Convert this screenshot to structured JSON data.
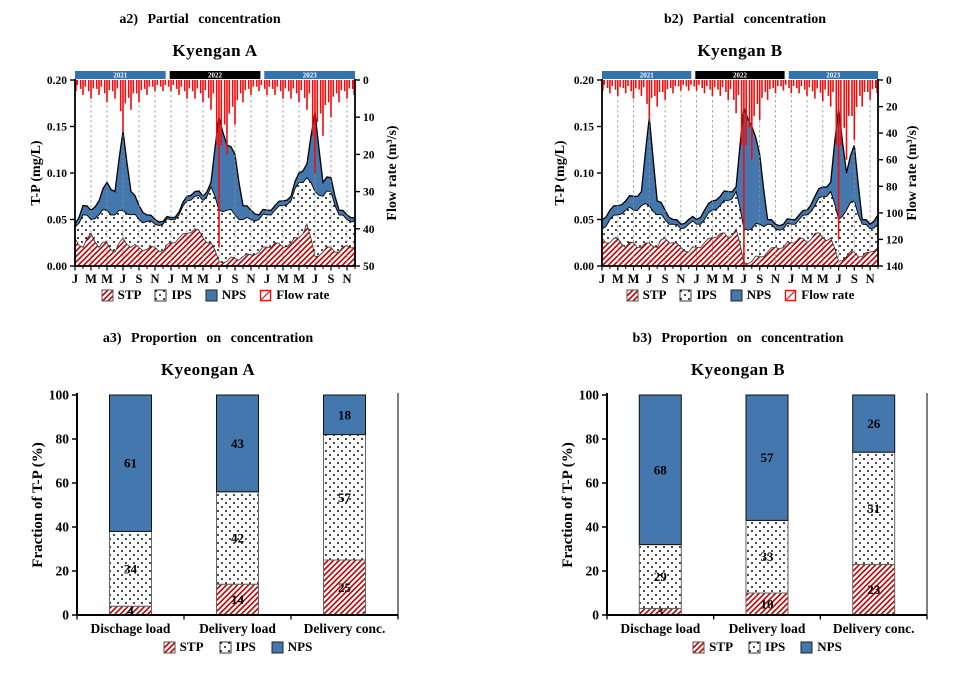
{
  "figure": {
    "background": "#ffffff"
  },
  "colors": {
    "blue": "#4377AD",
    "band_blue": "#2E74B5",
    "band_black": "#000000",
    "red": "#F20D0D",
    "hatch_red": "#C00000",
    "grid": "#8F8F8F",
    "text": "#000000"
  },
  "chart_data": [
    {
      "id": "a2",
      "type": "area",
      "panel_label": "a2) Partial concentration",
      "title": "Kyengan A",
      "x_axis": {
        "month_labels": [
          "J",
          "M",
          "M",
          "J",
          "S",
          "N",
          "J",
          "M",
          "M",
          "J",
          "S",
          "N",
          "J",
          "M",
          "M",
          "J",
          "S",
          "N"
        ]
      },
      "year_bands": [
        {
          "label": "2021",
          "color_key": "band_blue"
        },
        {
          "label": "2022",
          "color_key": "band_black"
        },
        {
          "label": "2023",
          "color_key": "band_blue"
        }
      ],
      "left_axis": {
        "label": "T-P (mg/L)",
        "min": 0,
        "max": 0.2,
        "ticks": [
          "0.00",
          "0.05",
          "0.10",
          "0.15",
          "0.20"
        ]
      },
      "right_axis": {
        "label": "Flow rate (m³/s)",
        "min": 0,
        "max": 50,
        "inverted": true,
        "ticks": [
          0,
          10,
          20,
          30,
          40,
          50
        ]
      },
      "series": {
        "STP": [
          0.03,
          0.02,
          0.035,
          0.02,
          0.025,
          0.015,
          0.03,
          0.02,
          0.02,
          0.018,
          0.02,
          0.015,
          0.025,
          0.03,
          0.035,
          0.04,
          0.03,
          0.025,
          0.005,
          0.005,
          0.008,
          0.01,
          0.012,
          0.015,
          0.02,
          0.025,
          0.02,
          0.025,
          0.03,
          0.045,
          0.01,
          0.015,
          0.02,
          0.015,
          0.022,
          0.02
        ],
        "IPS": [
          0.012,
          0.035,
          0.015,
          0.035,
          0.035,
          0.04,
          0.03,
          0.035,
          0.03,
          0.03,
          0.025,
          0.03,
          0.025,
          0.025,
          0.035,
          0.035,
          0.04,
          0.06,
          0.055,
          0.055,
          0.047,
          0.04,
          0.038,
          0.035,
          0.035,
          0.035,
          0.045,
          0.045,
          0.06,
          0.05,
          0.07,
          0.06,
          0.06,
          0.04,
          0.028,
          0.028
        ],
        "NPS": [
          0.003,
          0.01,
          0.01,
          0.015,
          0.03,
          0.025,
          0.085,
          0.025,
          0.015,
          0.007,
          0.005,
          0.003,
          0.002,
          0.003,
          0.005,
          0.005,
          0.005,
          0.005,
          0.1,
          0.07,
          0.065,
          0.015,
          0.01,
          0.005,
          0.005,
          0.005,
          0.005,
          0.005,
          0.01,
          0.015,
          0.085,
          0.015,
          0.015,
          0.005,
          0.005,
          0.004
        ],
        "Flow rate": [
          3,
          4,
          5,
          4,
          6,
          5,
          14,
          8,
          6,
          4,
          3,
          3,
          3,
          4,
          5,
          5,
          6,
          8,
          45,
          20,
          12,
          6,
          4,
          3,
          4,
          4,
          5,
          5,
          6,
          8,
          25,
          15,
          10,
          6,
          5,
          4
        ]
      },
      "legend": [
        "STP",
        "IPS",
        "NPS",
        "Flow rate"
      ]
    },
    {
      "id": "b2",
      "type": "area",
      "panel_label": "b2) Partial concentration",
      "title": "Kyengan B",
      "x_axis": {
        "month_labels": [
          "J",
          "M",
          "M",
          "J",
          "S",
          "N",
          "J",
          "M",
          "M",
          "J",
          "S",
          "N",
          "J",
          "M",
          "M",
          "J",
          "S",
          "N"
        ]
      },
      "year_bands": [
        {
          "label": "2021",
          "color_key": "band_blue"
        },
        {
          "label": "2022",
          "color_key": "band_black"
        },
        {
          "label": "2023",
          "color_key": "band_blue"
        }
      ],
      "left_axis": {
        "label": "T-P (mg/L)",
        "min": 0,
        "max": 0.2,
        "ticks": [
          "0.00",
          "0.05",
          "0.10",
          "0.15",
          "0.20"
        ]
      },
      "right_axis": {
        "label": "Flow rate (m³/s)",
        "min": 0,
        "max": 140,
        "inverted": true,
        "ticks": [
          0,
          20,
          40,
          60,
          80,
          100,
          120,
          140
        ]
      },
      "series": {
        "STP": [
          0.03,
          0.025,
          0.03,
          0.02,
          0.025,
          0.02,
          0.025,
          0.02,
          0.03,
          0.025,
          0.02,
          0.015,
          0.02,
          0.025,
          0.03,
          0.035,
          0.03,
          0.04,
          0.003,
          0.005,
          0.01,
          0.015,
          0.02,
          0.02,
          0.025,
          0.03,
          0.025,
          0.035,
          0.03,
          0.03,
          0.005,
          0.01,
          0.015,
          0.01,
          0.015,
          0.02
        ],
        "IPS": [
          0.01,
          0.025,
          0.025,
          0.04,
          0.035,
          0.045,
          0.04,
          0.035,
          0.02,
          0.02,
          0.02,
          0.03,
          0.025,
          0.025,
          0.03,
          0.03,
          0.04,
          0.04,
          0.037,
          0.035,
          0.035,
          0.03,
          0.02,
          0.02,
          0.02,
          0.02,
          0.03,
          0.03,
          0.045,
          0.05,
          0.045,
          0.05,
          0.055,
          0.035,
          0.025,
          0.025
        ],
        "NPS": [
          0.01,
          0.01,
          0.01,
          0.01,
          0.015,
          0.015,
          0.095,
          0.015,
          0.01,
          0.005,
          0.005,
          0.005,
          0.005,
          0.01,
          0.01,
          0.01,
          0.01,
          0.005,
          0.13,
          0.11,
          0.075,
          0.005,
          0.005,
          0.005,
          0.005,
          0.005,
          0.005,
          0.01,
          0.01,
          0.01,
          0.12,
          0.04,
          0.06,
          0.005,
          0.005,
          0.01
        ],
        "Flow rate": [
          8,
          10,
          12,
          10,
          14,
          12,
          30,
          20,
          15,
          10,
          8,
          8,
          8,
          10,
          12,
          12,
          15,
          25,
          140,
          60,
          30,
          15,
          10,
          8,
          10,
          10,
          12,
          14,
          16,
          20,
          120,
          60,
          45,
          20,
          15,
          10
        ]
      },
      "legend": [
        "STP",
        "IPS",
        "NPS",
        "Flow rate"
      ]
    },
    {
      "id": "a3",
      "type": "bar",
      "panel_label": "a3) Proportion on concentration",
      "title": "Kyeongan A",
      "ylabel": "Fraction of T-P (%)",
      "ylim": [
        0,
        100
      ],
      "yticks": [
        0,
        20,
        40,
        60,
        80,
        100
      ],
      "categories": [
        "Dischage load",
        "Delivery load",
        "Delivery conc."
      ],
      "series": [
        {
          "name": "STP",
          "values": [
            4,
            14,
            25
          ]
        },
        {
          "name": "IPS",
          "values": [
            34,
            42,
            57
          ]
        },
        {
          "name": "NPS",
          "values": [
            61,
            43,
            18
          ]
        }
      ],
      "legend": [
        "STP",
        "IPS",
        "NPS"
      ]
    },
    {
      "id": "b3",
      "type": "bar",
      "panel_label": "b3) Proportion on concentration",
      "title": "Kyeongan B",
      "ylabel": "Fraction of T-P (%)",
      "ylim": [
        0,
        100
      ],
      "yticks": [
        0,
        20,
        40,
        60,
        80,
        100
      ],
      "categories": [
        "Dischage load",
        "Delivery load",
        "Delivery conc."
      ],
      "series": [
        {
          "name": "STP",
          "values": [
            3,
            10,
            23
          ]
        },
        {
          "name": "IPS",
          "values": [
            29,
            33,
            51
          ]
        },
        {
          "name": "NPS",
          "values": [
            68,
            57,
            26
          ]
        }
      ],
      "legend": [
        "STP",
        "IPS",
        "NPS"
      ]
    }
  ]
}
